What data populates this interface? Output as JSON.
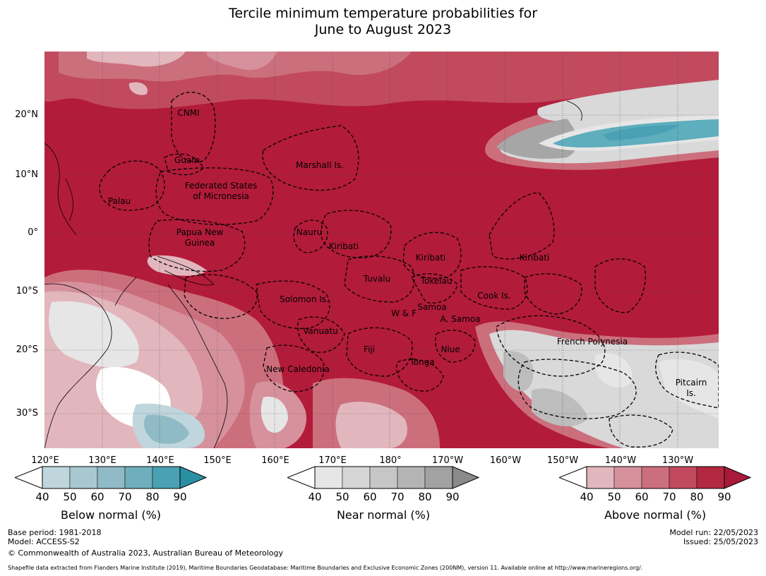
{
  "title": {
    "line1": "Tercile minimum temperature probabilities for",
    "line2": "June to August 2023"
  },
  "map": {
    "lat_labels": [
      "20°N",
      "10°N",
      "0°",
      "10°S",
      "20°S",
      "30°S"
    ],
    "lon_labels": [
      "120°E",
      "130°E",
      "140°E",
      "150°E",
      "160°E",
      "170°E",
      "180°",
      "170°W",
      "160°W",
      "150°W",
      "140°W",
      "130°W"
    ],
    "regions": [
      "CNMI",
      "Guam",
      "Marshall Is.",
      "Federated States",
      "of Micronesia",
      "Palau",
      "Papua New",
      "Guinea",
      "Nauru",
      "Kiribati",
      "Kiribati",
      "Kiribati",
      "Tuvalu",
      "Tokelau",
      "Solomon Is.",
      "Samoa",
      "W & F",
      "A. Samoa",
      "Cook Is.",
      "Vanuatu",
      "Fiji",
      "Niue",
      "Tonga",
      "French Polynesia",
      "New Caledonia",
      "Pitcairn",
      "Is."
    ],
    "colors": {
      "above90": "#b31b3a",
      "above80": "#c14a5e",
      "above70": "#cc6f7d",
      "above60": "#d6919c",
      "above50": "#e2b6bd",
      "near": "#d9d9d9",
      "near60": "#bdbdbd",
      "near80": "#a6a6a6",
      "below": "#5eaebd",
      "below40": "#bfd6dd"
    }
  },
  "colorbars": [
    {
      "label": "Below normal (%)",
      "ticks": [
        "40",
        "50",
        "60",
        "70",
        "80",
        "90"
      ],
      "colors": [
        "#bfd6dd",
        "#a8c8d1",
        "#8fbac6",
        "#6faebd",
        "#4aa1b3",
        "#2b8fa3"
      ]
    },
    {
      "label": "Near normal (%)",
      "ticks": [
        "40",
        "50",
        "60",
        "70",
        "80",
        "90"
      ],
      "colors": [
        "#e6e6e6",
        "#d6d6d6",
        "#c6c6c6",
        "#b4b4b4",
        "#a2a2a2",
        "#8a8a8a"
      ]
    },
    {
      "label": "Above normal (%)",
      "ticks": [
        "40",
        "50",
        "60",
        "70",
        "80",
        "90"
      ],
      "colors": [
        "#e2b6bd",
        "#d6919c",
        "#cc6f7d",
        "#c14a5e",
        "#b3283f",
        "#a8193a"
      ]
    }
  ],
  "footer": {
    "base_period": "Base period: 1981-2018",
    "model": "Model: ACCESS-S2",
    "copyright": "© Commonwealth of Australia 2023, Australian Bureau of Meteorology",
    "model_run": "Model run: 22/05/2023",
    "issued": "Issued: 25/05/2023",
    "shapefile": "Shapefile data extracted from Flanders Marine Institute (2019), Maritime Boundaries Geodatabase: Maritime Boundaries and Exclusive Economic Zones (200NM), version 11. Available online at http://www.marineregions.org/."
  }
}
